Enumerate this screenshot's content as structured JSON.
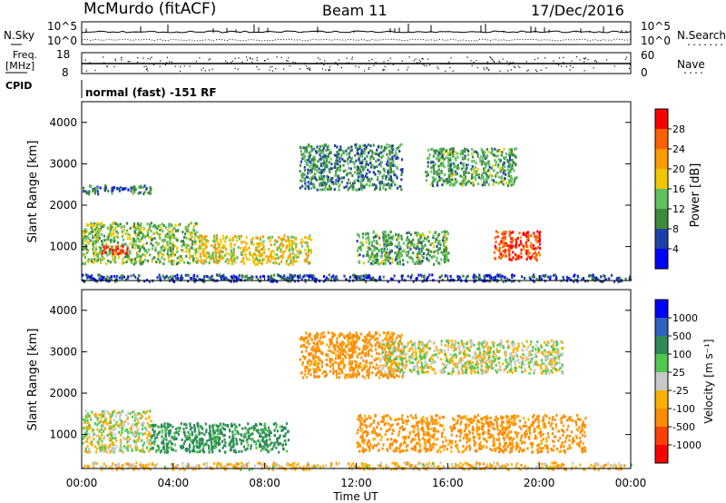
{
  "header": {
    "station": "McMurdo (fitACF)",
    "beam": "Beam 11",
    "date": "17/Dec/2016"
  },
  "left_labels": {
    "nsky": "N.Sky",
    "freq_line1": "Freq.",
    "freq_line2": "[MHz]",
    "cpid": "CPID"
  },
  "right_labels": {
    "nsearch": "N.Search",
    "nsearch_dots": "........",
    "nave": "Nave",
    "nave_dots": "...."
  },
  "noise_panel": {
    "top_tick": "10^5",
    "bottom_tick": "10^0",
    "right_top_tick": "10^5",
    "right_bottom_tick": "10^0"
  },
  "freq_panel": {
    "left_top_tick": "18",
    "left_bottom_tick": "8",
    "right_top_tick": "60",
    "right_bottom_tick": "0"
  },
  "cpid_text": "normal (fast) -151 RF",
  "x_axis": {
    "label": "Time UT",
    "ticks": [
      "00:00",
      "04:00",
      "08:00",
      "12:00",
      "16:00",
      "20:00",
      "00:00"
    ]
  },
  "power_panel": {
    "ylabel": "Slant Range [km]",
    "yticks": [
      "1000",
      "2000",
      "3000",
      "4000"
    ],
    "colorbar_label": "Power [dB]",
    "colorbar_ticks": [
      "4",
      "8",
      "12",
      "16",
      "20",
      "24",
      "28"
    ],
    "colors": [
      "#0000ff",
      "#1f3fa8",
      "#3c8a3c",
      "#60c060",
      "#f0c800",
      "#ff9a00",
      "#ff6000",
      "#ff0000"
    ]
  },
  "velocity_panel": {
    "ylabel": "Slant Range [km]",
    "yticks": [
      "1000",
      "2000",
      "3000",
      "4000"
    ],
    "colorbar_label": "Velocity [m s⁻¹]",
    "colorbar_ticks": [
      "-1000",
      "-500",
      "-100",
      "-25",
      "25",
      "100",
      "500",
      "1000"
    ],
    "colors": [
      "#ff0000",
      "#ff4000",
      "#ff8c00",
      "#ffb000",
      "#c8c8c8",
      "#50c850",
      "#2e8b57",
      "#3060c0",
      "#0000ff"
    ]
  },
  "chart_data": [
    {
      "type": "heatmap",
      "title": "McMurdo (fitACF) Beam 11 17/Dec/2016",
      "xlabel": "Time UT",
      "ylabel": "Slant Range [km]",
      "colorbar": "Power [dB]",
      "x_ticks": [
        "00:00",
        "04:00",
        "08:00",
        "12:00",
        "16:00",
        "20:00",
        "00:00"
      ],
      "ylim": [
        180,
        4500
      ],
      "y_ticks": [
        1000,
        2000,
        3000,
        4000
      ],
      "clim": [
        0,
        32
      ],
      "regions": [
        {
          "t_start_h": 0.0,
          "t_end_h": 5.0,
          "range_km": [
            600,
            1600
          ],
          "power_db": 14
        },
        {
          "t_start_h": 0.8,
          "t_end_h": 2.0,
          "range_km": [
            850,
            1050
          ],
          "power_db": 30
        },
        {
          "t_start_h": 5.0,
          "t_end_h": 10.0,
          "range_km": [
            600,
            1300
          ],
          "power_db": 18
        },
        {
          "t_start_h": 0.0,
          "t_end_h": 3.0,
          "range_km": [
            2300,
            2500
          ],
          "power_db": 8
        },
        {
          "t_start_h": 9.5,
          "t_end_h": 14.0,
          "range_km": [
            2400,
            3500
          ],
          "power_db": 10
        },
        {
          "t_start_h": 15.0,
          "t_end_h": 19.0,
          "range_km": [
            2500,
            3400
          ],
          "power_db": 12
        },
        {
          "t_start_h": 12.0,
          "t_end_h": 16.0,
          "range_km": [
            600,
            1400
          ],
          "power_db": 12
        },
        {
          "t_start_h": 18.0,
          "t_end_h": 20.0,
          "range_km": [
            700,
            1400
          ],
          "power_db": 28
        },
        {
          "t_start_h": 0.0,
          "t_end_h": 24.0,
          "range_km": [
            180,
            350
          ],
          "power_db": 6
        }
      ]
    },
    {
      "type": "heatmap",
      "title": "McMurdo (fitACF) Beam 11 17/Dec/2016",
      "xlabel": "Time UT",
      "ylabel": "Slant Range [km]",
      "colorbar": "Velocity [m s⁻¹]",
      "x_ticks": [
        "00:00",
        "04:00",
        "08:00",
        "12:00",
        "16:00",
        "20:00",
        "00:00"
      ],
      "ylim": [
        180,
        4500
      ],
      "y_ticks": [
        1000,
        2000,
        3000,
        4000
      ],
      "clim": [
        -1000,
        1000
      ],
      "regions": [
        {
          "t_start_h": 0.0,
          "t_end_h": 3.0,
          "range_km": [
            600,
            1600
          ],
          "velocity_ms": 0
        },
        {
          "t_start_h": 3.0,
          "t_end_h": 9.0,
          "range_km": [
            600,
            1300
          ],
          "velocity_ms": 150
        },
        {
          "t_start_h": 9.5,
          "t_end_h": 14.0,
          "range_km": [
            2400,
            3500
          ],
          "velocity_ms": -150
        },
        {
          "t_start_h": 13.0,
          "t_end_h": 21.0,
          "range_km": [
            2500,
            3300
          ],
          "velocity_ms": 0
        },
        {
          "t_start_h": 12.0,
          "t_end_h": 22.0,
          "range_km": [
            600,
            1500
          ],
          "velocity_ms": -150
        },
        {
          "t_start_h": 0.0,
          "t_end_h": 24.0,
          "range_km": [
            180,
            350
          ],
          "velocity_ms": -50
        }
      ]
    }
  ]
}
